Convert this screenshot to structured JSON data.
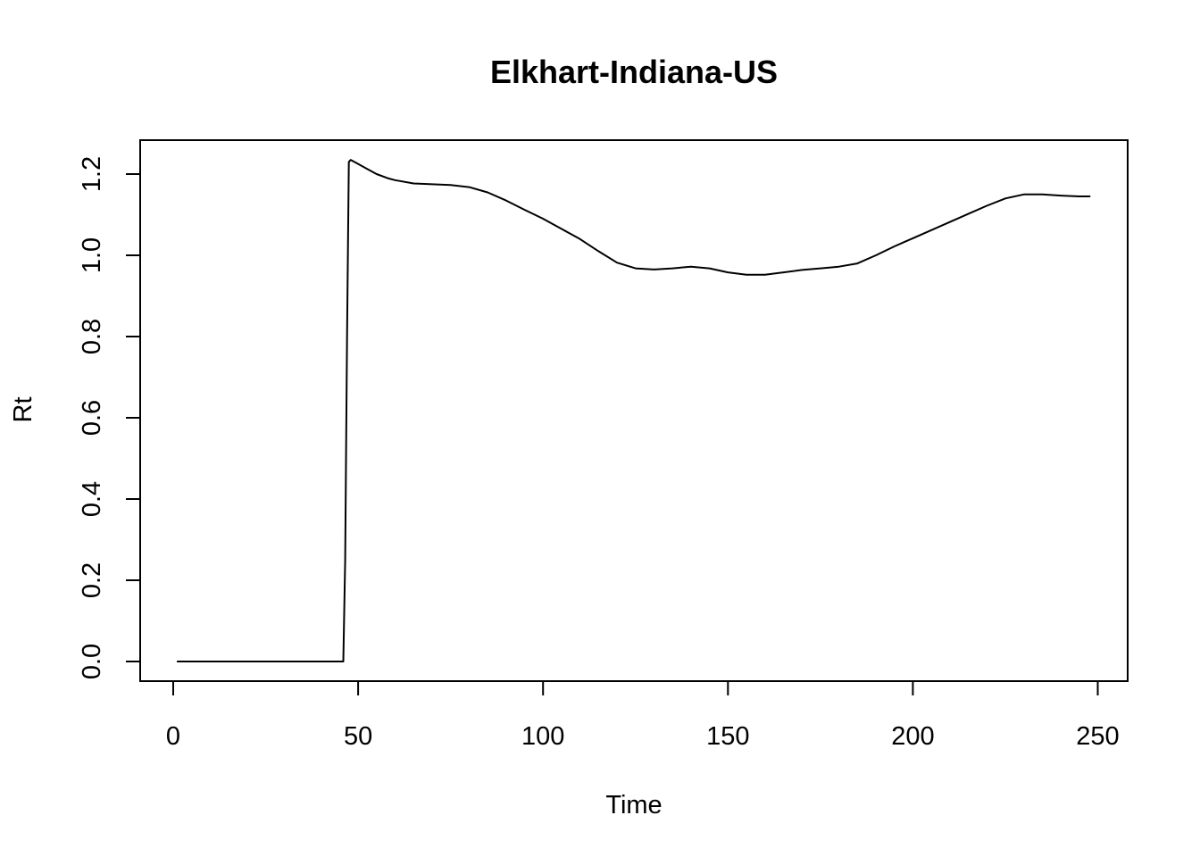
{
  "chart_data": {
    "type": "line",
    "title": "Elkhart-Indiana-US",
    "xlabel": "Time",
    "ylabel": "Rt",
    "xlim": [
      0,
      250
    ],
    "ylim": [
      0,
      1.2
    ],
    "x_ticks": [
      "0",
      "50",
      "100",
      "150",
      "200",
      "250"
    ],
    "y_ticks": [
      "0.0",
      "0.2",
      "0.4",
      "0.6",
      "0.8",
      "1.0",
      "1.2"
    ],
    "grid": false,
    "legend": "none",
    "line_color": "#000000",
    "series": [
      {
        "x": [
          1,
          10,
          20,
          30,
          40,
          46,
          46.5,
          47,
          47.5,
          48,
          50,
          52,
          55,
          58,
          60,
          65,
          70,
          75,
          80,
          85,
          90,
          95,
          100,
          105,
          110,
          115,
          120,
          125,
          130,
          135,
          140,
          145,
          150,
          155,
          160,
          165,
          170,
          175,
          180,
          185,
          190,
          195,
          200,
          205,
          210,
          215,
          220,
          225,
          230,
          235,
          240,
          245,
          248
        ],
        "y": [
          0,
          0,
          0,
          0,
          0,
          0,
          0.25,
          0.8,
          1.23,
          1.235,
          1.225,
          1.215,
          1.2,
          1.19,
          1.185,
          1.177,
          1.175,
          1.173,
          1.168,
          1.155,
          1.135,
          1.112,
          1.09,
          1.065,
          1.04,
          1.01,
          0.982,
          0.968,
          0.965,
          0.968,
          0.972,
          0.968,
          0.958,
          0.952,
          0.952,
          0.958,
          0.964,
          0.968,
          0.972,
          0.98,
          1.0,
          1.022,
          1.042,
          1.062,
          1.082,
          1.102,
          1.122,
          1.14,
          1.15,
          1.15,
          1.147,
          1.145,
          1.145
        ]
      }
    ]
  }
}
